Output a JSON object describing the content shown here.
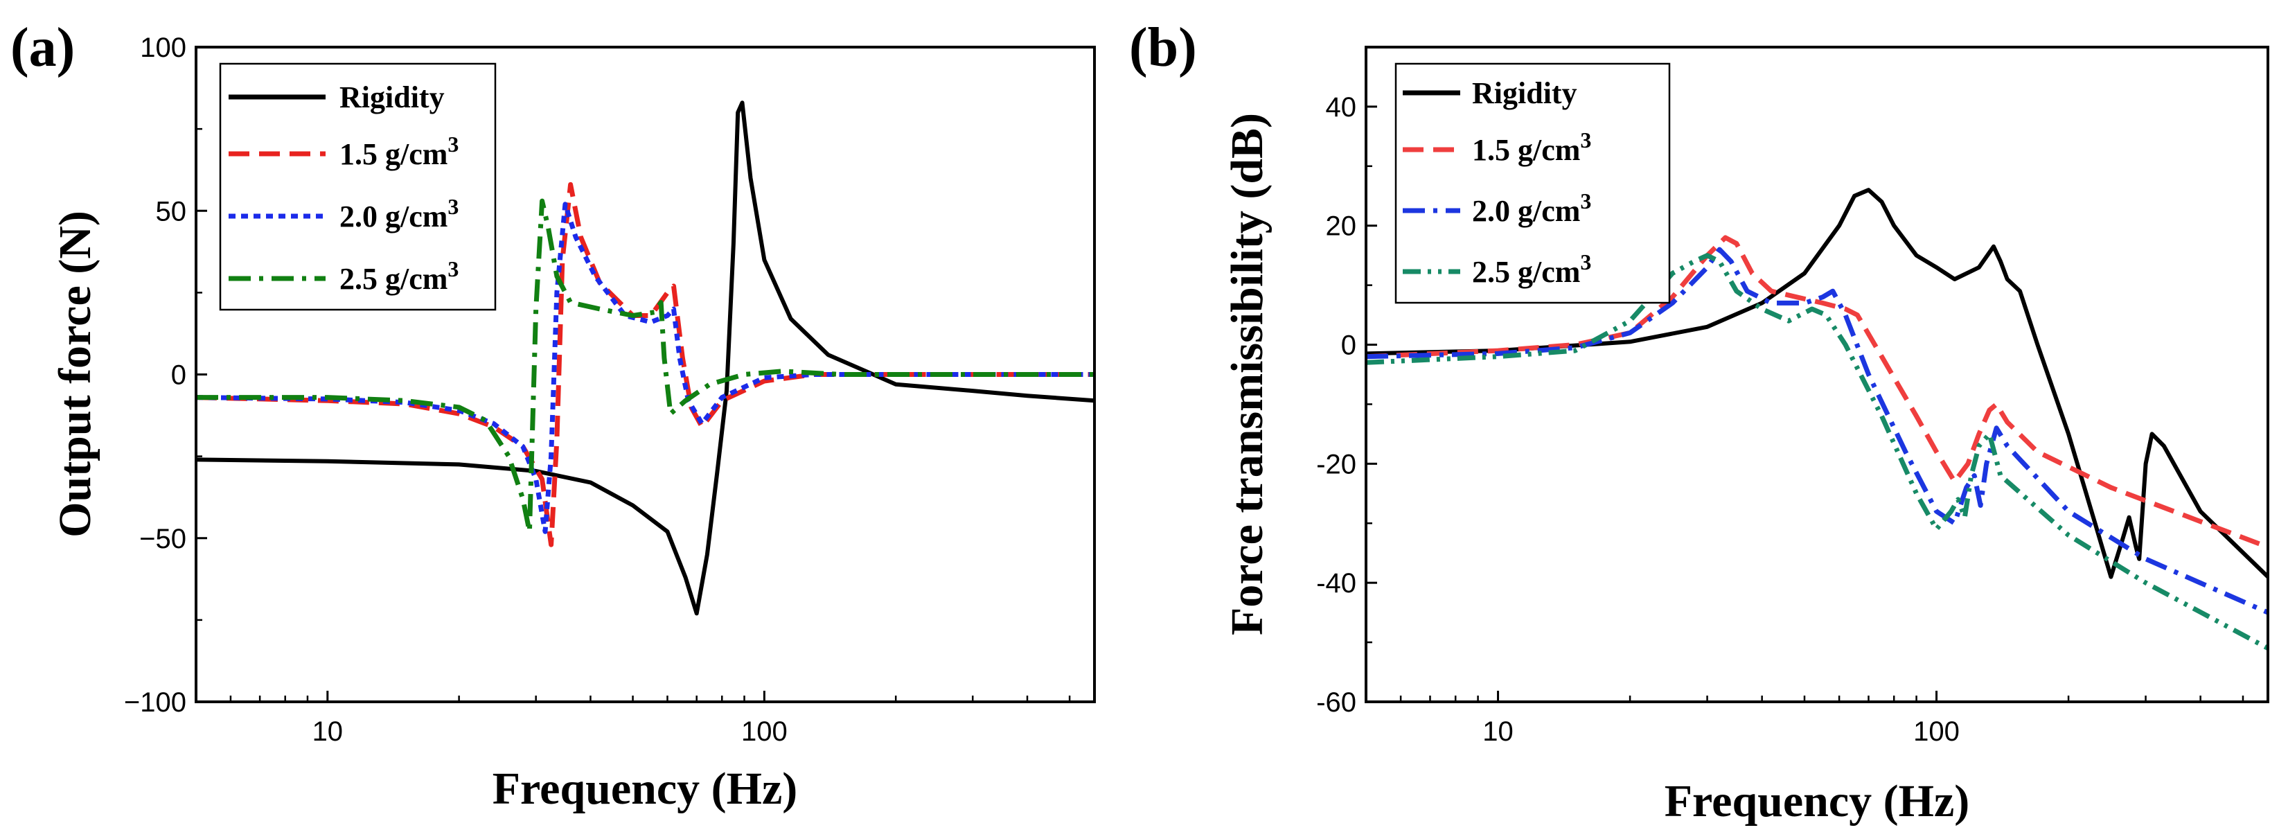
{
  "chart_data": [
    {
      "panel_label": "(a)",
      "type": "line",
      "xscale": "log",
      "xlim": [
        5,
        570
      ],
      "ylim": [
        -100,
        100
      ],
      "xticks": [
        10,
        100
      ],
      "xtick_labels": [
        "10",
        "100"
      ],
      "yticks": [
        -100,
        -50,
        0,
        50,
        100
      ],
      "ytick_labels": [
        "−100",
        "−50",
        "0",
        "50",
        "100"
      ],
      "xlabel": "Frequency (Hz)",
      "ylabel": "Output force (N)",
      "legend_position": "top-left",
      "series": [
        {
          "name": "Rigidity",
          "legend_label": "Rigidity",
          "legend_sup": "",
          "color": "#000000",
          "dash": "solid",
          "points": [
            [
              5,
              -26
            ],
            [
              10,
              -26.5
            ],
            [
              20,
              -27.5
            ],
            [
              30,
              -29.5
            ],
            [
              40,
              -33
            ],
            [
              50,
              -40
            ],
            [
              60,
              -48
            ],
            [
              66,
              -62
            ],
            [
              70,
              -73
            ],
            [
              74,
              -55
            ],
            [
              78,
              -30
            ],
            [
              82,
              -5
            ],
            [
              85,
              40
            ],
            [
              87,
              80
            ],
            [
              89,
              83
            ],
            [
              93,
              60
            ],
            [
              100,
              35
            ],
            [
              115,
              17
            ],
            [
              140,
              6
            ],
            [
              200,
              -3
            ],
            [
              300,
              -5
            ],
            [
              400,
              -6.5
            ],
            [
              570,
              -8
            ]
          ]
        },
        {
          "name": "1.5 g/cm3",
          "legend_label": "1.5 g/cm",
          "legend_sup": "3",
          "color": "#e8231f",
          "dash": "dash",
          "points": [
            [
              5,
              -7
            ],
            [
              10,
              -8
            ],
            [
              15,
              -9
            ],
            [
              20,
              -12
            ],
            [
              24,
              -16
            ],
            [
              28,
              -22
            ],
            [
              31,
              -32
            ],
            [
              32.5,
              -52
            ],
            [
              33.5,
              -20
            ],
            [
              34.5,
              35
            ],
            [
              36,
              58
            ],
            [
              38,
              42
            ],
            [
              42,
              28
            ],
            [
              50,
              18
            ],
            [
              55,
              18
            ],
            [
              60,
              25
            ],
            [
              62,
              27
            ],
            [
              65,
              5
            ],
            [
              68,
              -10
            ],
            [
              72,
              -16
            ],
            [
              80,
              -8
            ],
            [
              100,
              -2
            ],
            [
              130,
              0
            ],
            [
              200,
              0
            ],
            [
              570,
              0
            ]
          ]
        },
        {
          "name": "2.0 g/cm3",
          "legend_label": "2.0 g/cm",
          "legend_sup": "3",
          "color": "#1b2bea",
          "dash": "dot",
          "points": [
            [
              5,
              -7
            ],
            [
              10,
              -7.5
            ],
            [
              15,
              -8.5
            ],
            [
              20,
              -11
            ],
            [
              24,
              -15
            ],
            [
              28,
              -22
            ],
            [
              30,
              -32
            ],
            [
              31.5,
              -48
            ],
            [
              32.5,
              -25
            ],
            [
              33.5,
              25
            ],
            [
              35,
              52
            ],
            [
              37,
              42
            ],
            [
              41,
              30
            ],
            [
              48,
              18
            ],
            [
              55,
              16
            ],
            [
              60,
              18
            ],
            [
              62,
              20
            ],
            [
              64,
              5
            ],
            [
              67,
              -8
            ],
            [
              72,
              -15
            ],
            [
              80,
              -7
            ],
            [
              100,
              -1
            ],
            [
              130,
              0
            ],
            [
              200,
              0
            ],
            [
              570,
              0
            ]
          ]
        },
        {
          "name": "2.5 g/cm3",
          "legend_label": "2.5  g/cm",
          "legend_sup": "3",
          "color": "#118012",
          "dash": "dashdot",
          "points": [
            [
              5,
              -7
            ],
            [
              10,
              -7
            ],
            [
              15,
              -8
            ],
            [
              20,
              -10
            ],
            [
              23,
              -14
            ],
            [
              26,
              -25
            ],
            [
              28,
              -38
            ],
            [
              29,
              -48
            ],
            [
              30,
              20
            ],
            [
              31,
              53
            ],
            [
              32,
              45
            ],
            [
              33.5,
              30
            ],
            [
              36,
              22
            ],
            [
              42,
              20
            ],
            [
              50,
              18
            ],
            [
              56,
              19
            ],
            [
              58,
              22
            ],
            [
              59,
              5
            ],
            [
              61,
              -12
            ],
            [
              66,
              -8
            ],
            [
              75,
              -3
            ],
            [
              90,
              0
            ],
            [
              110,
              1
            ],
            [
              150,
              0
            ],
            [
              570,
              0
            ]
          ]
        }
      ]
    },
    {
      "panel_label": "(b)",
      "type": "line",
      "xscale": "log",
      "xlim": [
        5,
        570
      ],
      "ylim": [
        -60,
        50
      ],
      "xticks": [
        10,
        100
      ],
      "xtick_labels": [
        "10",
        "100"
      ],
      "yticks": [
        -60,
        -40,
        -20,
        0,
        20,
        40
      ],
      "ytick_labels": [
        "-60",
        "-40",
        "-20",
        "0",
        "20",
        "40"
      ],
      "xlabel": "Frequency (Hz)",
      "ylabel": "Force transmissibility (dB)",
      "legend_position": "top-left",
      "series": [
        {
          "name": "Rigidity",
          "legend_label": "Rigidity",
          "legend_sup": "",
          "color": "#000000",
          "dash": "solid",
          "points": [
            [
              5,
              -1.5
            ],
            [
              10,
              -1
            ],
            [
              20,
              0.5
            ],
            [
              30,
              3
            ],
            [
              40,
              7
            ],
            [
              50,
              12
            ],
            [
              60,
              20
            ],
            [
              65,
              25
            ],
            [
              70,
              26
            ],
            [
              75,
              24
            ],
            [
              80,
              20
            ],
            [
              90,
              15
            ],
            [
              100,
              13
            ],
            [
              110,
              11
            ],
            [
              125,
              13
            ],
            [
              135,
              16.5
            ],
            [
              140,
              14
            ],
            [
              145,
              11
            ],
            [
              155,
              9
            ],
            [
              170,
              0
            ],
            [
              200,
              -15
            ],
            [
              230,
              -30
            ],
            [
              250,
              -39
            ],
            [
              265,
              -33
            ],
            [
              275,
              -29
            ],
            [
              285,
              -34
            ],
            [
              290,
              -36
            ],
            [
              300,
              -20
            ],
            [
              310,
              -15
            ],
            [
              330,
              -17
            ],
            [
              400,
              -28
            ],
            [
              570,
              -39
            ]
          ]
        },
        {
          "name": "1.5 g/cm3",
          "legend_label": "1.5 g/cm",
          "legend_sup": "3",
          "color": "#ef3e3e",
          "dash": "dash",
          "points": [
            [
              5,
              -2
            ],
            [
              10,
              -1
            ],
            [
              15,
              0
            ],
            [
              20,
              2
            ],
            [
              25,
              8
            ],
            [
              30,
              15
            ],
            [
              33,
              18
            ],
            [
              35,
              17
            ],
            [
              38,
              12
            ],
            [
              42,
              9
            ],
            [
              48,
              8
            ],
            [
              55,
              7
            ],
            [
              62,
              6
            ],
            [
              66,
              5
            ],
            [
              75,
              -2
            ],
            [
              90,
              -12
            ],
            [
              100,
              -18
            ],
            [
              110,
              -23
            ],
            [
              118,
              -20
            ],
            [
              125,
              -15
            ],
            [
              132,
              -11
            ],
            [
              137,
              -10
            ],
            [
              145,
              -13
            ],
            [
              170,
              -18
            ],
            [
              250,
              -24
            ],
            [
              570,
              -34
            ]
          ]
        },
        {
          "name": "2.0 g/cm3",
          "legend_label": "2.0 g/cm",
          "legend_sup": "3",
          "color": "#1c36e0",
          "dash": "dashdot",
          "points": [
            [
              5,
              -2
            ],
            [
              10,
              -1.5
            ],
            [
              15,
              -0.5
            ],
            [
              20,
              2
            ],
            [
              25,
              7
            ],
            [
              30,
              13
            ],
            [
              32,
              16
            ],
            [
              34,
              14
            ],
            [
              37,
              9
            ],
            [
              42,
              7
            ],
            [
              50,
              7
            ],
            [
              55,
              8
            ],
            [
              58,
              9
            ],
            [
              62,
              5
            ],
            [
              70,
              -5
            ],
            [
              85,
              -18
            ],
            [
              100,
              -28
            ],
            [
              110,
              -30
            ],
            [
              117,
              -24
            ],
            [
              122,
              -22
            ],
            [
              126,
              -27
            ],
            [
              130,
              -20
            ],
            [
              137,
              -14
            ],
            [
              145,
              -17
            ],
            [
              200,
              -28
            ],
            [
              300,
              -36
            ],
            [
              570,
              -45
            ]
          ]
        },
        {
          "name": "2.5 g/cm3",
          "legend_label": "2.5 g/cm",
          "legend_sup": "3",
          "color": "#178a66",
          "dash": "dashdotdot",
          "points": [
            [
              5,
              -3
            ],
            [
              10,
              -2
            ],
            [
              15,
              -1
            ],
            [
              20,
              4
            ],
            [
              25,
              12
            ],
            [
              28,
              14
            ],
            [
              30,
              15
            ],
            [
              32,
              14
            ],
            [
              35,
              9
            ],
            [
              40,
              6
            ],
            [
              46,
              4
            ],
            [
              52,
              6
            ],
            [
              56,
              5
            ],
            [
              62,
              0
            ],
            [
              75,
              -12
            ],
            [
              90,
              -25
            ],
            [
              100,
              -31
            ],
            [
              108,
              -28
            ],
            [
              112,
              -26
            ],
            [
              116,
              -29
            ],
            [
              120,
              -22
            ],
            [
              125,
              -17
            ],
            [
              132,
              -15
            ],
            [
              140,
              -22
            ],
            [
              200,
              -32
            ],
            [
              300,
              -40
            ],
            [
              570,
              -51
            ]
          ]
        }
      ]
    }
  ]
}
